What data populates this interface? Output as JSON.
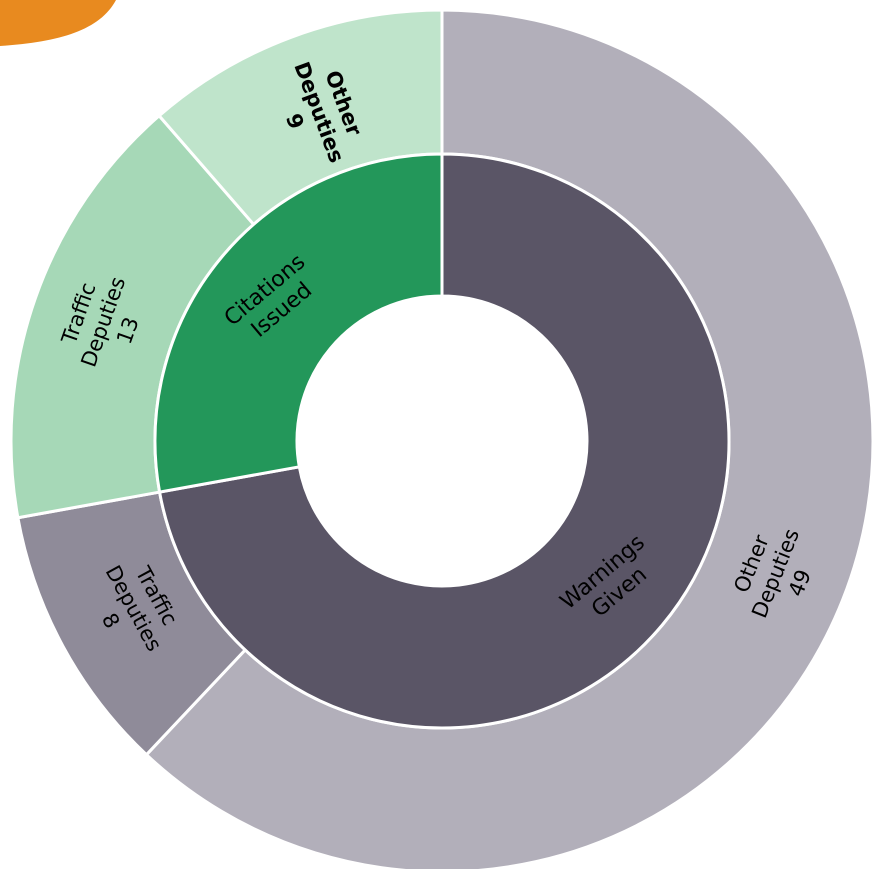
{
  "chart_data": {
    "type": "sunburst",
    "title": "",
    "inner": [
      {
        "name": "Warnings Given",
        "line1": "Warnings",
        "line2": "Given",
        "value": 57,
        "color": "#5a5566"
      },
      {
        "name": "Citations Issued",
        "line1": "Citations",
        "line2": "Issued",
        "value": 22,
        "color": "#23975a"
      }
    ],
    "outer": [
      {
        "parent": "Warnings Given",
        "line1": "Other",
        "line2": "Deputies",
        "value": 49,
        "value_label": "49",
        "color": "#b2afba",
        "bold": false
      },
      {
        "parent": "Warnings Given",
        "line1": "Traffic",
        "line2": "Deputies",
        "value": 8,
        "value_label": "8",
        "color": "#8f8b99",
        "bold": false
      },
      {
        "parent": "Citations Issued",
        "line1": "Traffic",
        "line2": "Deputies",
        "value": 13,
        "value_label": "13",
        "color": "#a6d8b7",
        "bold": false
      },
      {
        "parent": "Citations Issued",
        "line1": "Other",
        "line2": "Deputies",
        "value": 9,
        "value_label": "9",
        "color": "#bfe4cb",
        "bold": true
      }
    ],
    "decoration_color": "#e88a1f"
  }
}
